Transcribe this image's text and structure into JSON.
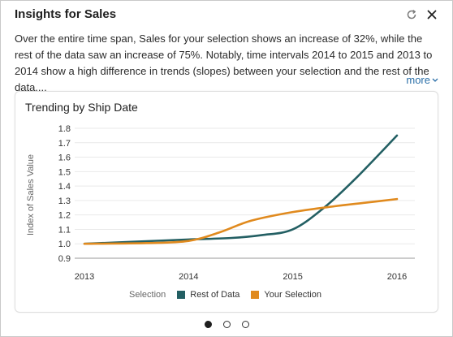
{
  "header": {
    "title": "Insights for Sales",
    "refresh_icon": "refresh-icon",
    "close_icon": "close-icon"
  },
  "summary": {
    "text": "Over the entire time span, Sales for your selection shows an increase of 32%, while the rest of the data saw an increase of 75%. Notably, time intervals 2014 to 2015 and 2013 to 2014 show a high difference in trends (slopes) between your selection and the rest of the data....",
    "more_label": "more",
    "more_icon": "chevron-down-icon"
  },
  "card": {
    "title": "Trending by Ship Date"
  },
  "chart_data": {
    "type": "line",
    "title": "Trending by Ship Date",
    "xlabel": "",
    "ylabel": "Index of Sales Value",
    "x": [
      2013,
      2014,
      2015,
      2016
    ],
    "xlim": [
      2013,
      2016
    ],
    "ylim": [
      0.9,
      1.8
    ],
    "y_ticks": [
      "0.9",
      "1.0",
      "1.1",
      "1.2",
      "1.3",
      "1.4",
      "1.5",
      "1.6",
      "1.7",
      "1.8"
    ],
    "x_ticks": [
      "2013",
      "2014",
      "2015",
      "2016"
    ],
    "legend_title": "Selection",
    "legend_position": "bottom",
    "series": [
      {
        "name": "Rest of Data",
        "color": "#235f63",
        "points": [
          [
            2013,
            1.0
          ],
          [
            2013.5,
            1.015
          ],
          [
            2014,
            1.03
          ],
          [
            2014.4,
            1.04
          ],
          [
            2014.7,
            1.06
          ],
          [
            2015,
            1.1
          ],
          [
            2015.3,
            1.25
          ],
          [
            2015.6,
            1.45
          ],
          [
            2016,
            1.75
          ]
        ]
      },
      {
        "name": "Your Selection",
        "color": "#e08a1e",
        "points": [
          [
            2013,
            1.0
          ],
          [
            2013.6,
            1.005
          ],
          [
            2014,
            1.02
          ],
          [
            2014.3,
            1.08
          ],
          [
            2014.6,
            1.16
          ],
          [
            2015,
            1.22
          ],
          [
            2015.4,
            1.26
          ],
          [
            2015.7,
            1.285
          ],
          [
            2016,
            1.31
          ]
        ]
      }
    ],
    "grid": "horizontal"
  },
  "pager": {
    "pages": 3,
    "active": 0
  }
}
